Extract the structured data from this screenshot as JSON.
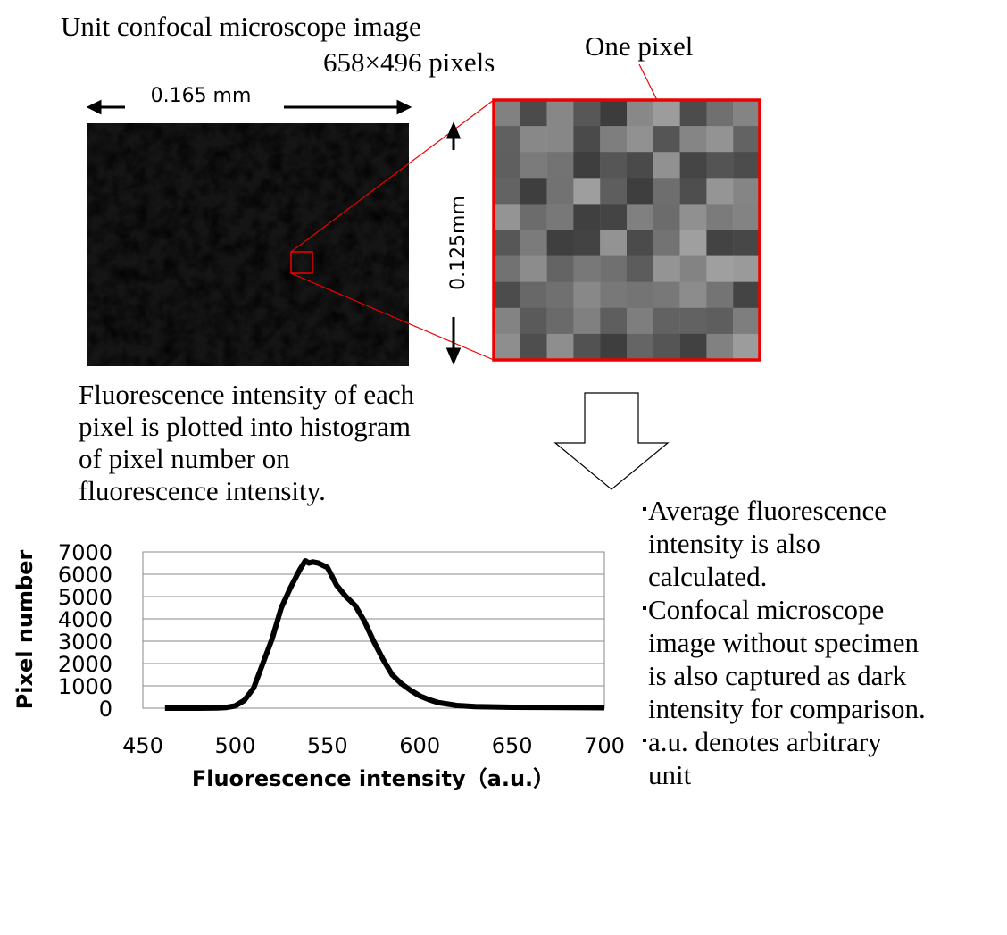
{
  "chart_data": {
    "type": "line",
    "x": [
      462,
      480,
      490,
      495,
      500,
      505,
      510,
      515,
      520,
      525,
      530,
      535,
      538,
      540,
      542,
      545,
      550,
      555,
      560,
      565,
      570,
      575,
      580,
      585,
      590,
      595,
      600,
      605,
      610,
      620,
      630,
      650,
      700
    ],
    "series": [
      {
        "color": "#000000",
        "values": [
          0,
          0,
          10,
          30,
          100,
          350,
          900,
          2000,
          3100,
          4500,
          5400,
          6200,
          6600,
          6500,
          6550,
          6500,
          6300,
          5500,
          5000,
          4600,
          3900,
          3000,
          2200,
          1500,
          1100,
          800,
          550,
          380,
          250,
          120,
          70,
          40,
          20
        ]
      }
    ],
    "xlim": [
      450,
      700
    ],
    "xticks": [
      450,
      500,
      550,
      600,
      650,
      700
    ],
    "ylim": [
      0,
      7000
    ],
    "yticks": [
      0,
      1000,
      2000,
      3000,
      4000,
      5000,
      6000,
      7000
    ],
    "grid": true,
    "xlabel": "Fluorescence intensity（a.u.）",
    "ylabel": "Pixel number"
  },
  "diagram": {
    "title": "Unit confocal microscope image",
    "size_label": "658×496 pixels",
    "width_label": "0.165 mm",
    "height_label": "0.125mm",
    "pixel_label": "One pixel",
    "description": [
      "Fluorescence intensity of each",
      "pixel is plotted into histogram",
      "of pixel number on",
      "fluorescence intensity."
    ],
    "notes": [
      [
        "Average fluorescence",
        "intensity is also",
        "calculated."
      ],
      [
        "Confocal microscope",
        "image without specimen",
        "is also captured as dark",
        "intensity for comparison."
      ],
      [
        "a.u. denotes arbitrary",
        "unit"
      ]
    ]
  }
}
